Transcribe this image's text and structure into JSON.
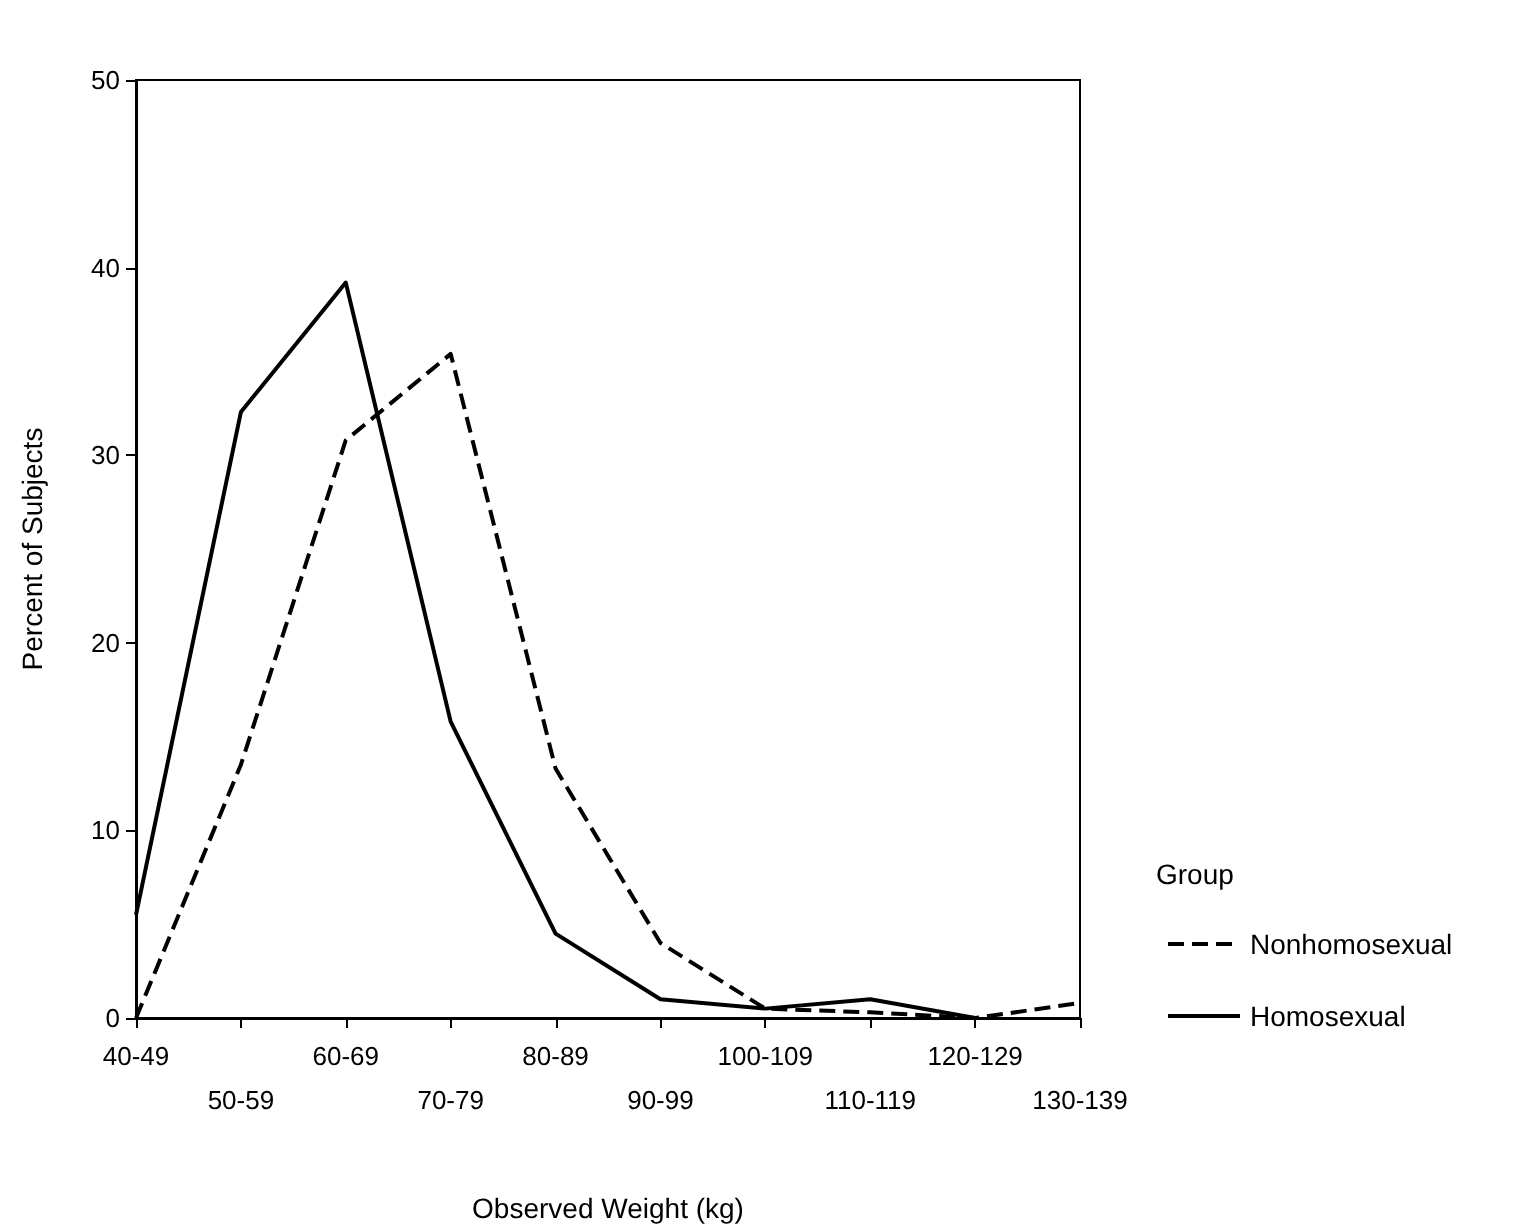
{
  "chart_data": {
    "type": "line",
    "xlabel": "Observed Weight (kg)",
    "ylabel": "Percent of Subjects",
    "legend_title": "Group",
    "categories": [
      "40-49",
      "50-59",
      "60-69",
      "70-79",
      "80-89",
      "90-99",
      "100-109",
      "110-119",
      "120-129",
      "130-139"
    ],
    "series": [
      {
        "name": "Nonhomosexual",
        "color": "#000000",
        "line_style": "dashed",
        "values": [
          0,
          13.5,
          30.8,
          35.4,
          13.3,
          4,
          0.5,
          0.3,
          0,
          0.8
        ]
      },
      {
        "name": "Homosexual",
        "color": "#000000",
        "line_style": "solid",
        "values": [
          5.5,
          32.3,
          39.2,
          15.8,
          4.5,
          1,
          0.5,
          1,
          0,
          null
        ]
      }
    ],
    "ylim": [
      0,
      50
    ],
    "yticks": [
      0,
      10,
      20,
      30,
      40,
      50
    ],
    "grid": false,
    "legend": "right",
    "marker": "none"
  }
}
